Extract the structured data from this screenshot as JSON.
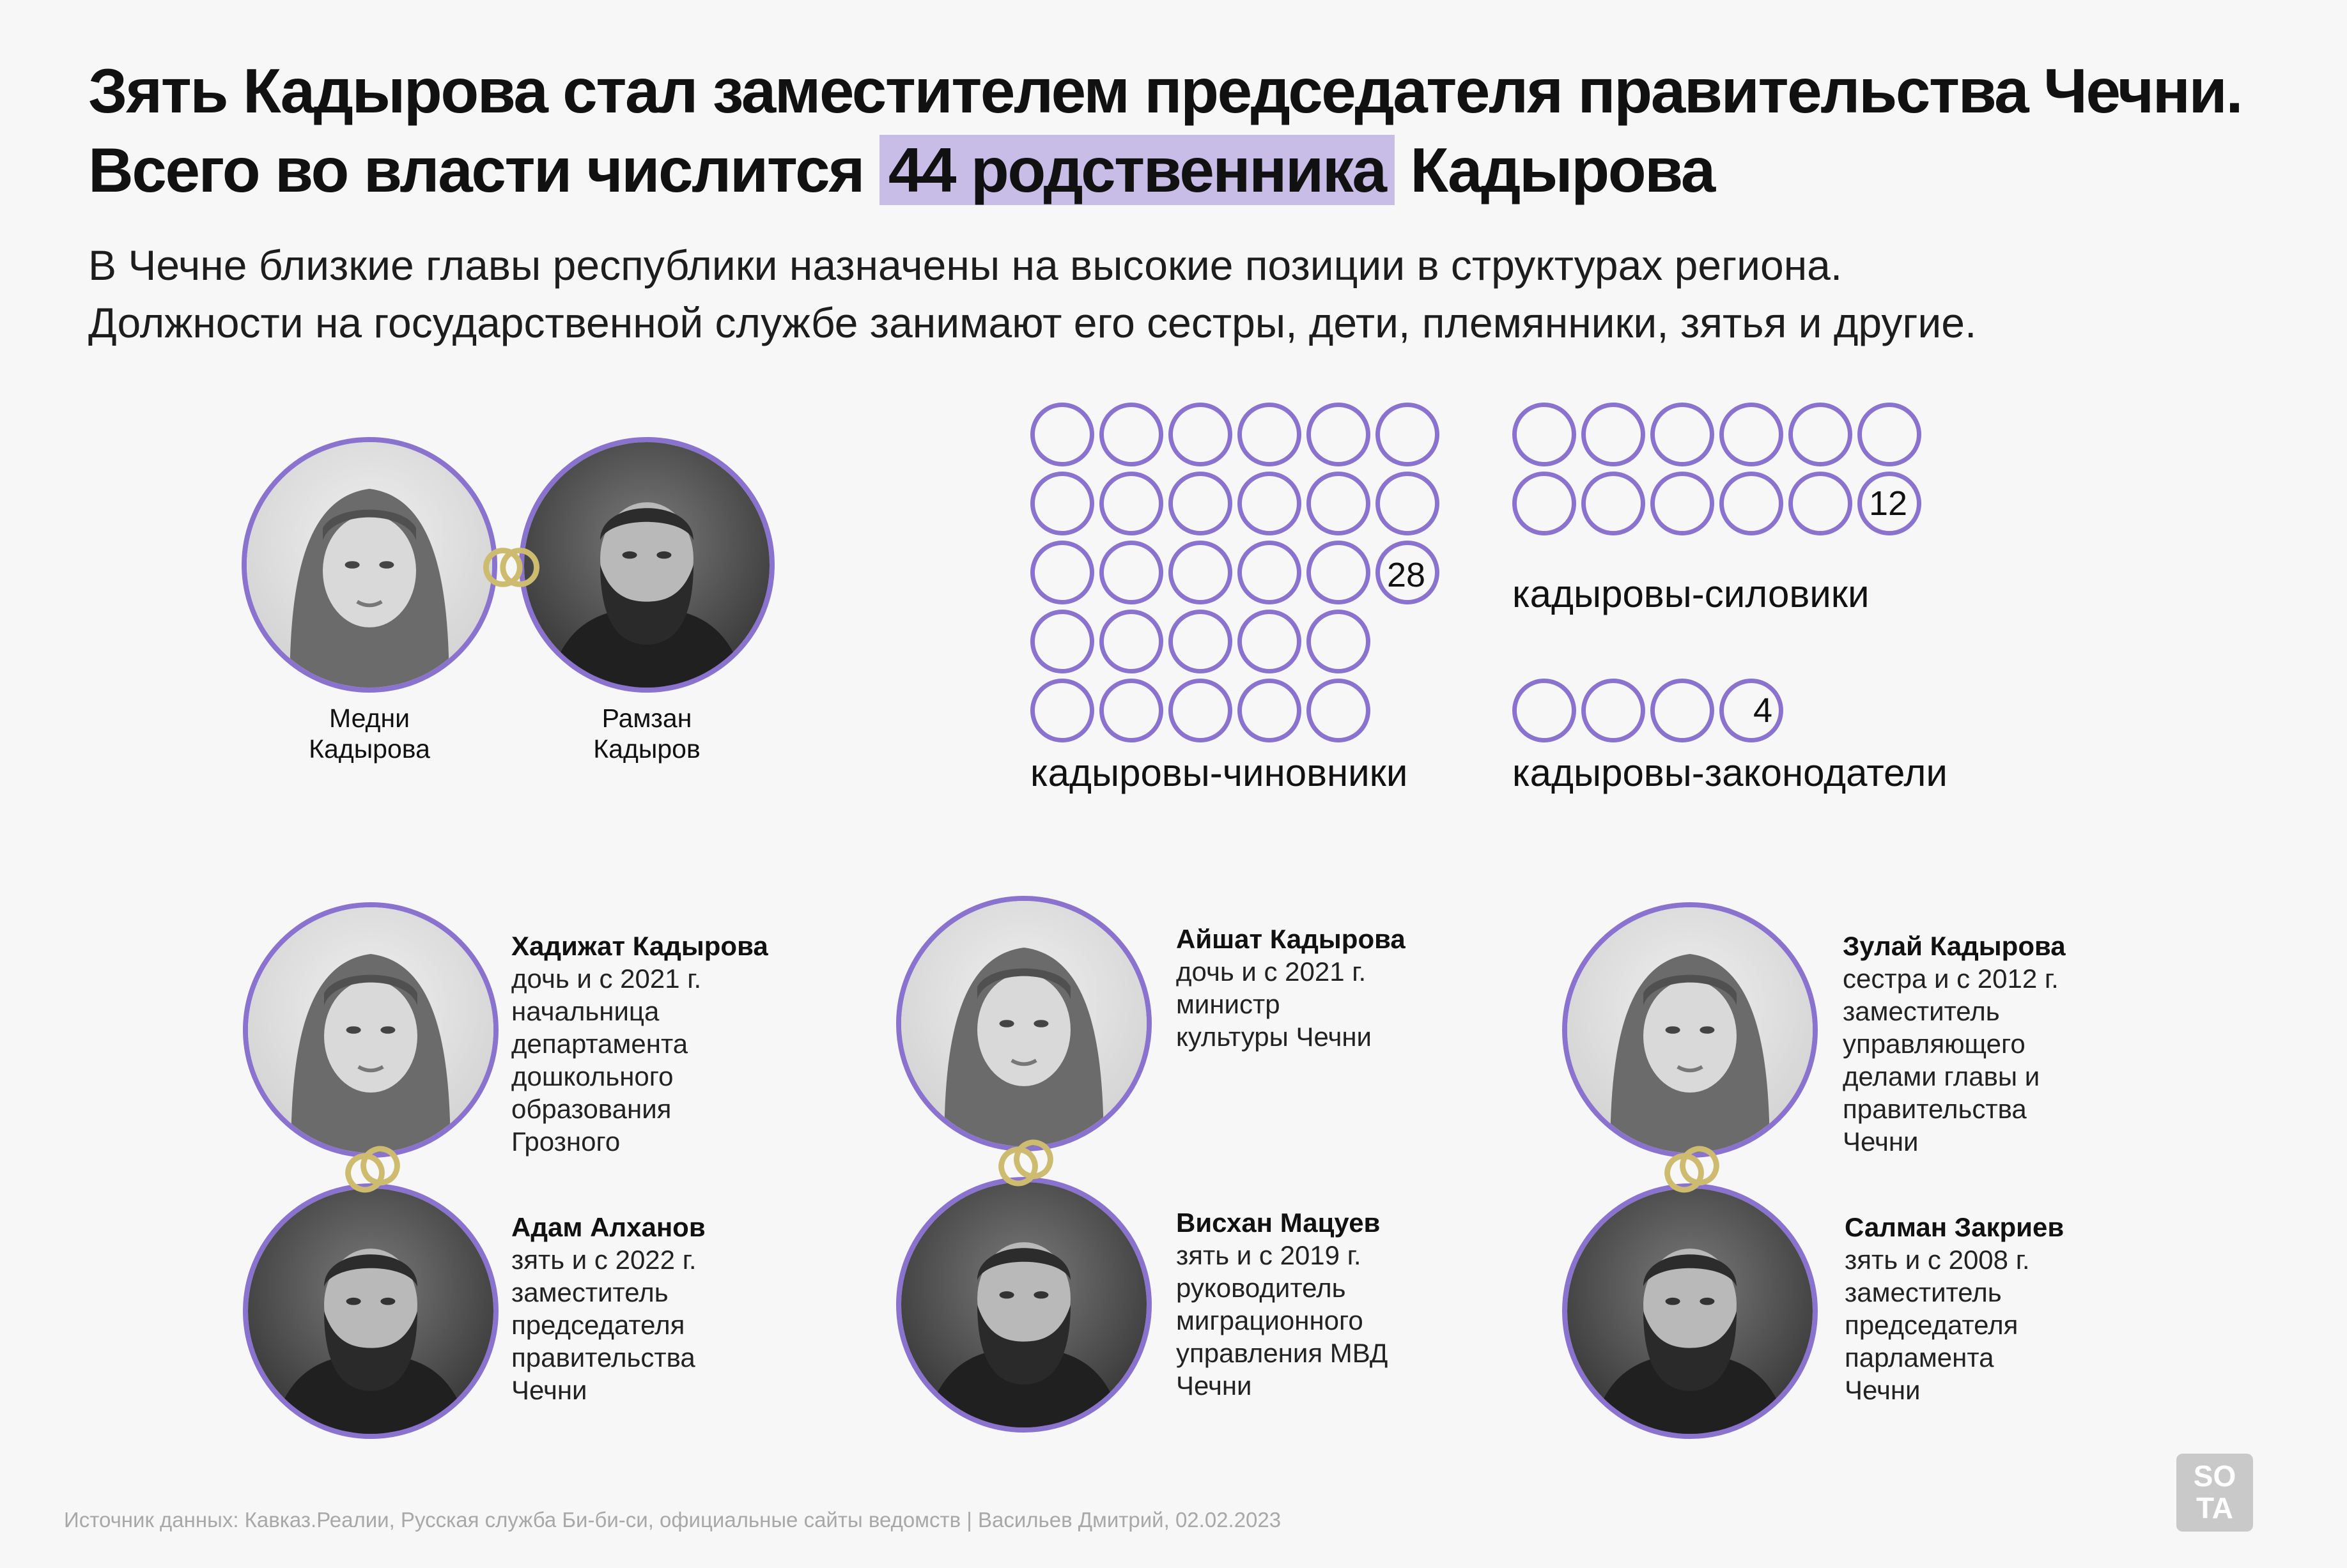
{
  "header": {
    "title_before": "Зять Кадырова стал заместителем председателя правительства Чечни. Всего во власти числится ",
    "title_highlight": "44 родственника",
    "title_after": " Кадырова",
    "subtitle_line1": "В Чечне близкие главы республики назначены на высокие позиции в структурах региона.",
    "subtitle_line2": "Должности на государственной службе занимают его сестры, дети, племянники, зятья и другие."
  },
  "couple": {
    "left_name_1": "Медни",
    "left_name_2": "Кадырова",
    "right_name_1": "Рамзан",
    "right_name_2": "Кадыров"
  },
  "groups": {
    "officials": {
      "count": "28",
      "label": "кадыровы-чиновники",
      "value": 28
    },
    "security": {
      "count": "12",
      "label": "кадыровы-силовики",
      "value": 12
    },
    "legislators": {
      "count": "4",
      "label": "кадыровы-законодатели",
      "value": 4
    }
  },
  "people": {
    "khadizhat": {
      "name": "Хадижат Кадырова",
      "line1": "дочь и с 2021 г.",
      "line2": "начальница",
      "line3": "департамента",
      "line4": "дошкольного",
      "line5": "образования",
      "line6": "Грозного"
    },
    "adam": {
      "name": "Адам Алханов",
      "line1": "зять и с 2022 г.",
      "line2": "заместитель",
      "line3": "председателя",
      "line4": "правительства",
      "line5": "Чечни"
    },
    "aishat": {
      "name": "Айшат Кадырова",
      "line1": "дочь и с 2021 г.",
      "line2": "министр",
      "line3": "культуры Чечни"
    },
    "viskhan": {
      "name": "Висхан Мацуев",
      "line1": "зять и с 2019 г.",
      "line2": "руководитель",
      "line3": "миграционного",
      "line4": "управления МВД",
      "line5": "Чечни"
    },
    "zulai": {
      "name": "Зулай Кадырова",
      "line1": "сестра и с 2012 г.",
      "line2": "заместитель",
      "line3": "управляющего",
      "line4": "делами главы и",
      "line5": "правительства",
      "line6": "Чечни"
    },
    "salman": {
      "name": "Салман Закриев",
      "line1": "зять и с 2008 г.",
      "line2": "заместитель",
      "line3": "председателя",
      "line4": "парламента",
      "line5": "Чечни"
    }
  },
  "footer": {
    "source": "Источник данных: Кавказ.Реалии, Русская служба Би-би-си, официальные сайты ведомств | Васильев Дмитрий, 02.02.2023",
    "logo_top": "SO",
    "logo_bottom": "TA"
  },
  "colors": {
    "accent": "#8a72cf",
    "highlight": "#c7bde6",
    "rings": "#cdbb6f"
  }
}
